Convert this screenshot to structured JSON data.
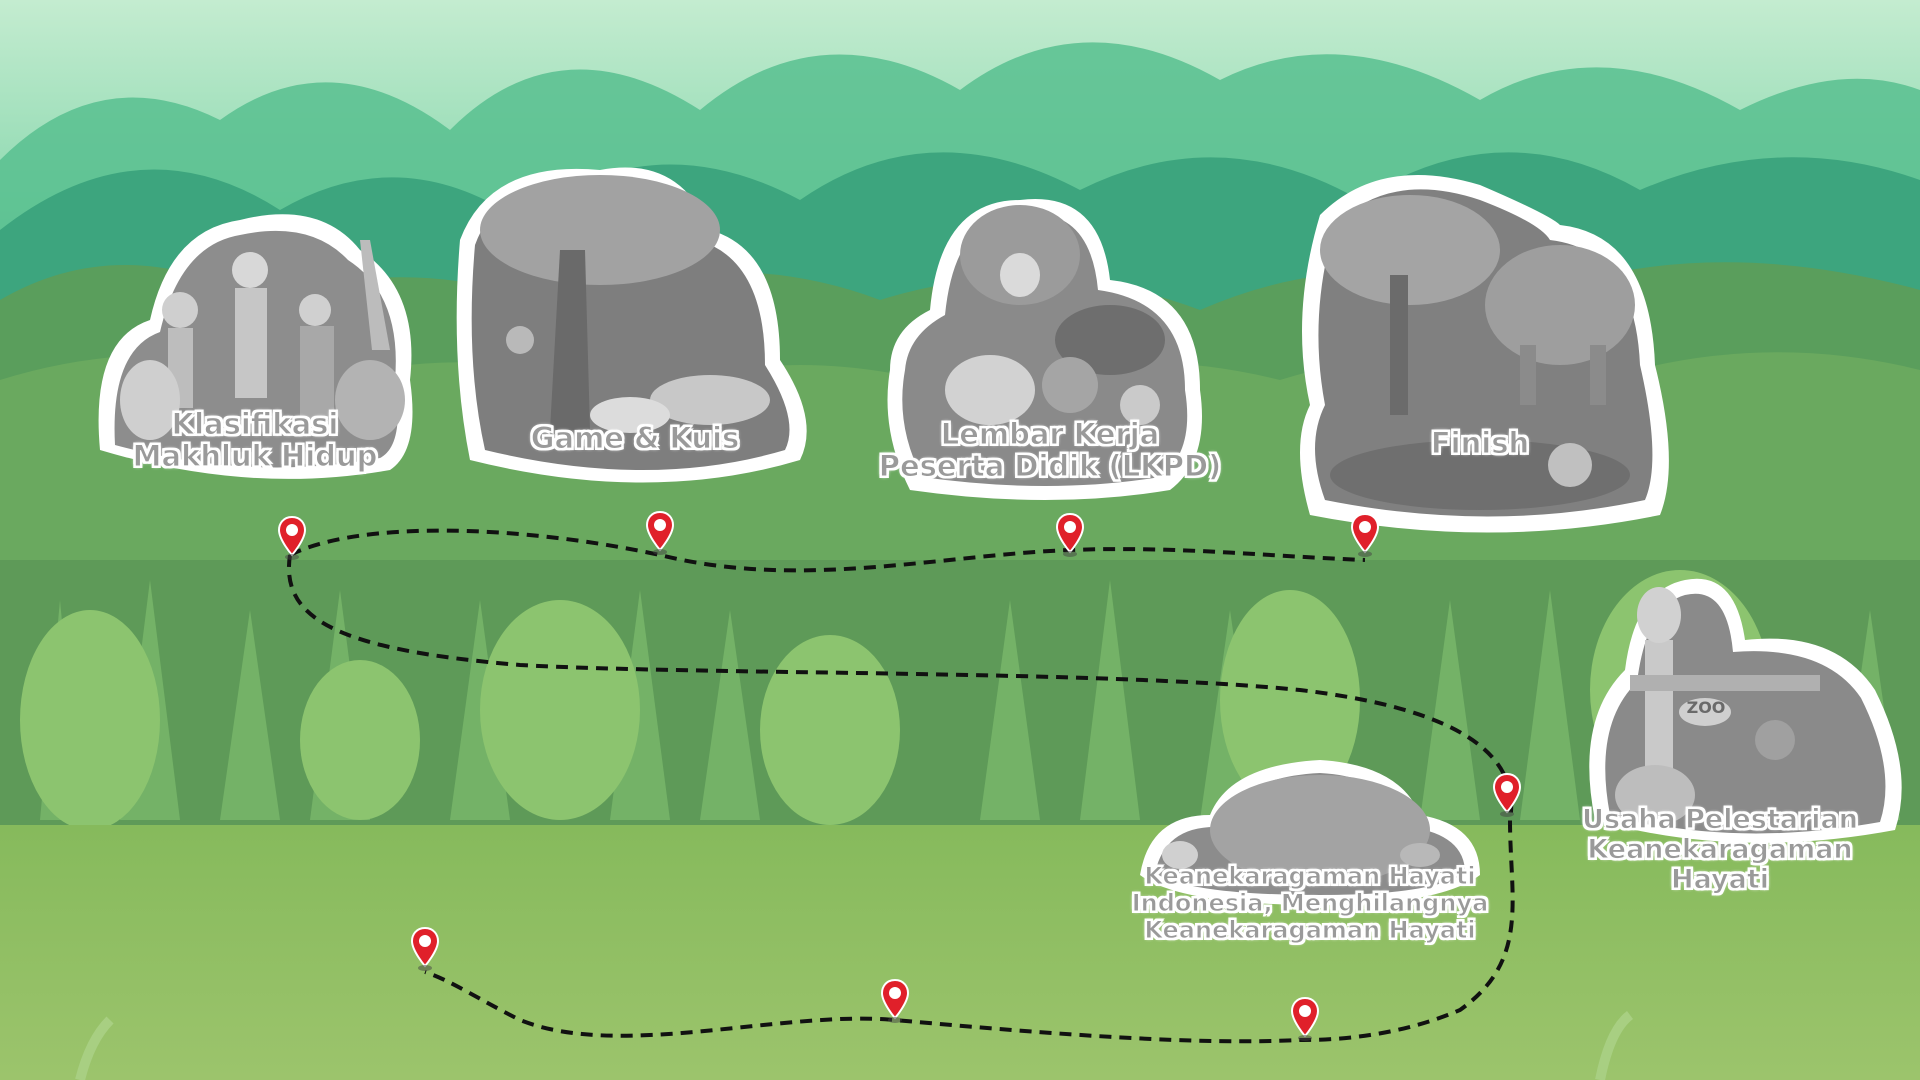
{
  "map": {
    "path_color": "#111111",
    "pin_color": "#e0202a",
    "sky_top": "#b8e6c6",
    "ground_color": "#8fc065"
  },
  "stations": [
    {
      "id": "klasifikasi",
      "label_lines": [
        "Klasifikasi",
        "Makhluk Hidup"
      ]
    },
    {
      "id": "game-kuis",
      "label_lines": [
        "Game & Kuis"
      ]
    },
    {
      "id": "lkpd",
      "label_lines": [
        "Lembar Kerja",
        "Peserta Didik (LKPD)"
      ]
    },
    {
      "id": "finish",
      "label_lines": [
        "Finish"
      ]
    },
    {
      "id": "usaha-pelestarian",
      "label_lines": [
        "Usaha Pelestarian",
        "Keanekaragaman Hayati"
      ],
      "sign_text": "ZOO"
    },
    {
      "id": "keanekaragaman",
      "label_lines": [
        "Keanekaragaman Hayati",
        "Indonesia, Menghilangnya",
        "Keanekaragaman Hayati"
      ]
    }
  ],
  "pins": [
    {
      "name": "pin-1"
    },
    {
      "name": "pin-2"
    },
    {
      "name": "pin-3"
    },
    {
      "name": "pin-4"
    },
    {
      "name": "pin-5"
    },
    {
      "name": "pin-6"
    },
    {
      "name": "pin-7"
    },
    {
      "name": "pin-8"
    }
  ]
}
